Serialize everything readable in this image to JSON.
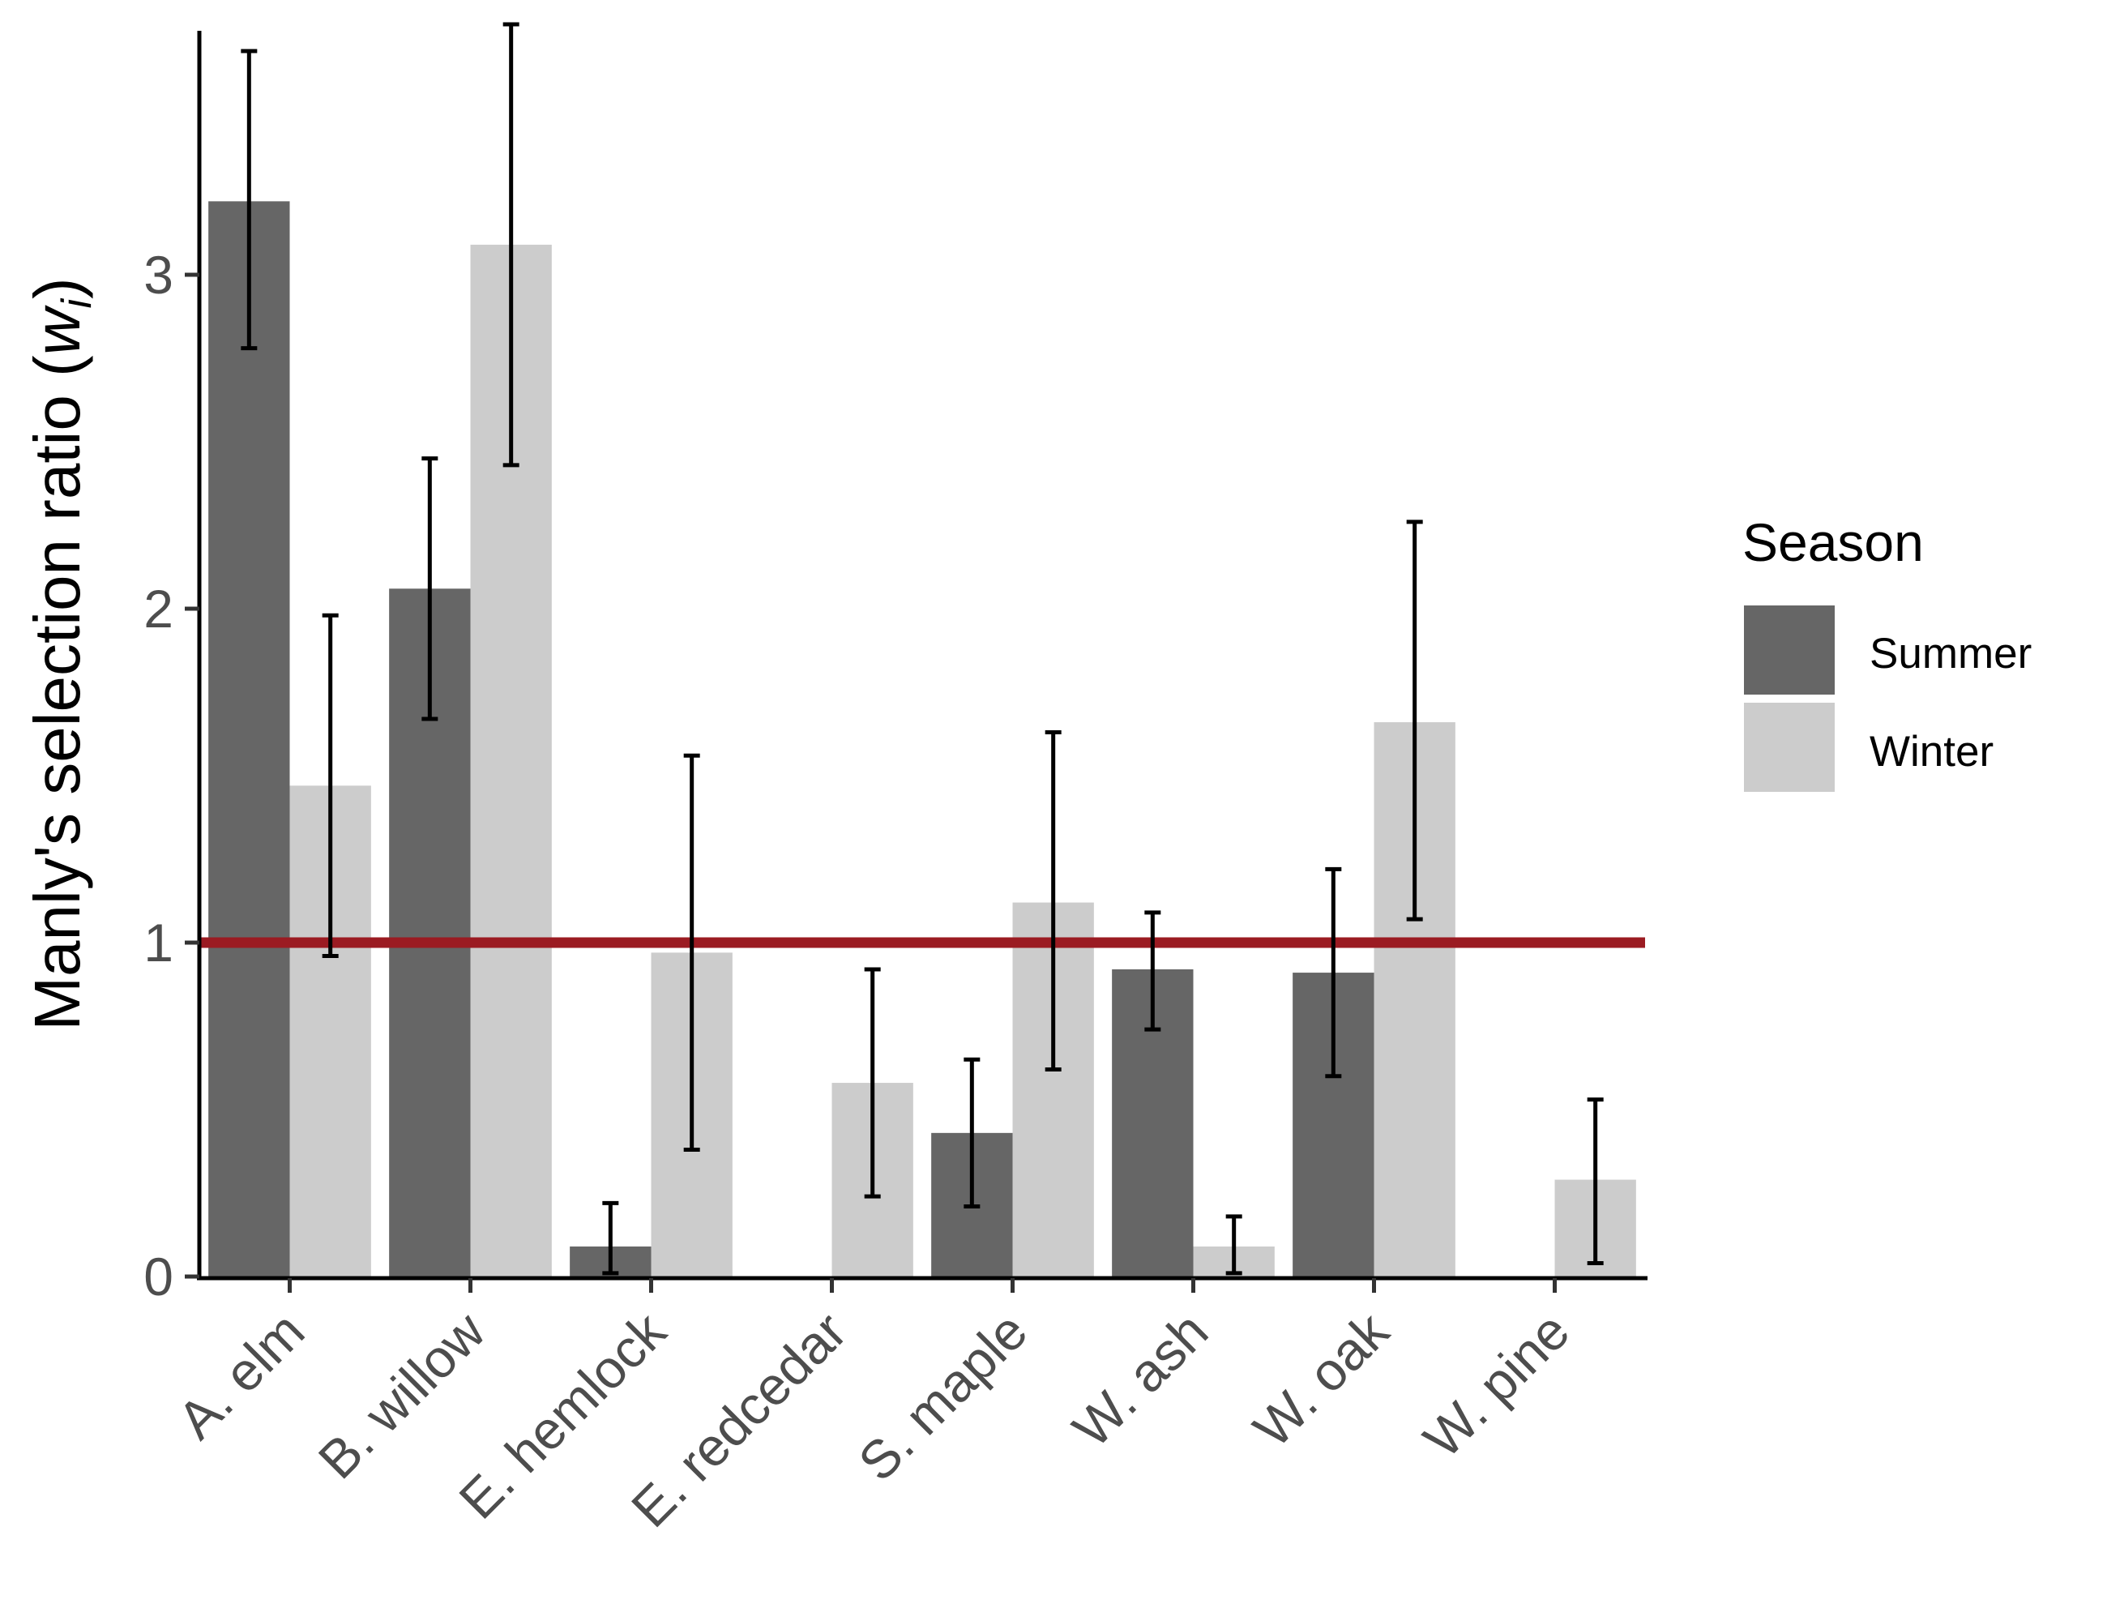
{
  "chart_data": {
    "type": "bar",
    "categories": [
      "A. elm",
      "B. willow",
      "E. hemlock",
      "E. redcedar",
      "S. maple",
      "W. ash",
      "W. oak",
      "W. pine"
    ],
    "series": [
      {
        "name": "Summer",
        "color": "#666666",
        "values": [
          3.22,
          2.06,
          0.09,
          0.0,
          0.43,
          0.92,
          0.91,
          0.0
        ],
        "error_low": [
          2.78,
          1.67,
          0.01,
          null,
          0.21,
          0.74,
          0.6,
          null
        ],
        "error_high": [
          3.67,
          2.45,
          0.22,
          null,
          0.65,
          1.09,
          1.22,
          null
        ]
      },
      {
        "name": "Winter",
        "color": "#cccccc",
        "values": [
          1.47,
          3.09,
          0.97,
          0.58,
          1.12,
          0.09,
          1.66,
          0.29
        ],
        "error_low": [
          0.96,
          2.43,
          0.38,
          0.24,
          0.62,
          0.01,
          1.07,
          0.04
        ],
        "error_high": [
          1.98,
          3.75,
          1.56,
          0.92,
          1.63,
          0.18,
          2.26,
          0.53
        ]
      }
    ],
    "reference_line": {
      "y": 1,
      "color": "#9b1b22"
    },
    "xlabel": "",
    "ylabel": "Manly's selection ratio (",
    "ylabel_symbol": "w",
    "ylabel_subscript": "i",
    "ylabel_close": ")",
    "yticks": [
      "0",
      "1",
      "2",
      "3"
    ],
    "ylim": [
      0,
      3.75
    ],
    "grid": false,
    "legend": {
      "title": "Season",
      "placement": "right"
    }
  }
}
